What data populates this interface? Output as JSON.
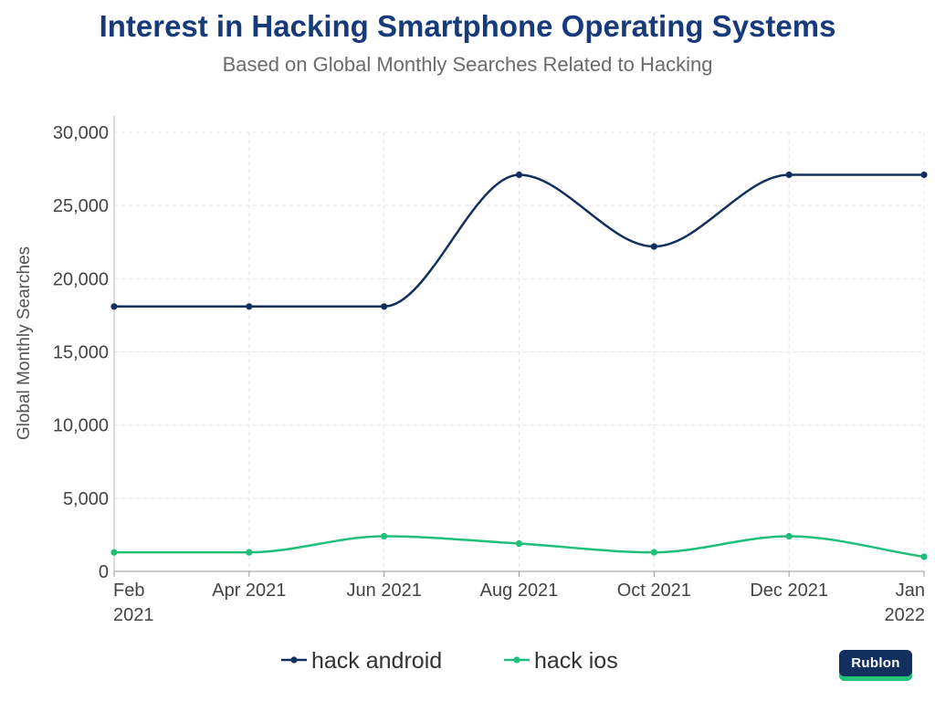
{
  "title": "Interest in Hacking Smartphone Operating Systems",
  "subtitle": "Based on Global Monthly Searches Related to Hacking",
  "logo": {
    "text": "Rublon"
  },
  "colors": {
    "android": "#12305e",
    "ios": "#1fbf7a",
    "title": "#173a7a"
  },
  "chart_data": {
    "type": "line",
    "title": "Interest in Hacking Smartphone Operating Systems",
    "subtitle": "Based on Global Monthly Searches Related to Hacking",
    "xlabel": "",
    "ylabel": "Global Monthly Searches",
    "x": [
      "Feb 2021",
      "Apr 2021",
      "Jun 2021",
      "Aug 2021",
      "Oct 2021",
      "Dec 2021",
      "Jan 2022"
    ],
    "x_tick_labels": [
      [
        "Feb",
        "2021"
      ],
      [
        "Apr 2021"
      ],
      [
        "Jun 2021"
      ],
      [
        "Aug 2021"
      ],
      [
        "Oct 2021"
      ],
      [
        "Dec 2021"
      ],
      [
        "Jan",
        "2022"
      ]
    ],
    "ylim": [
      0,
      30000
    ],
    "y_ticks": [
      0,
      5000,
      10000,
      15000,
      20000,
      25000,
      30000
    ],
    "y_tick_labels": [
      "0",
      "5,000",
      "10,000",
      "15,000",
      "20,000",
      "25,000",
      "30,000"
    ],
    "grid": true,
    "legend_position": "bottom",
    "series": [
      {
        "name": "hack android",
        "color": "#12305e",
        "values": [
          18100,
          18100,
          18100,
          27100,
          22200,
          27100,
          27100
        ]
      },
      {
        "name": "hack ios",
        "color": "#1fbf7a",
        "values": [
          1300,
          1300,
          2400,
          1900,
          1300,
          2400,
          1000
        ]
      }
    ]
  }
}
